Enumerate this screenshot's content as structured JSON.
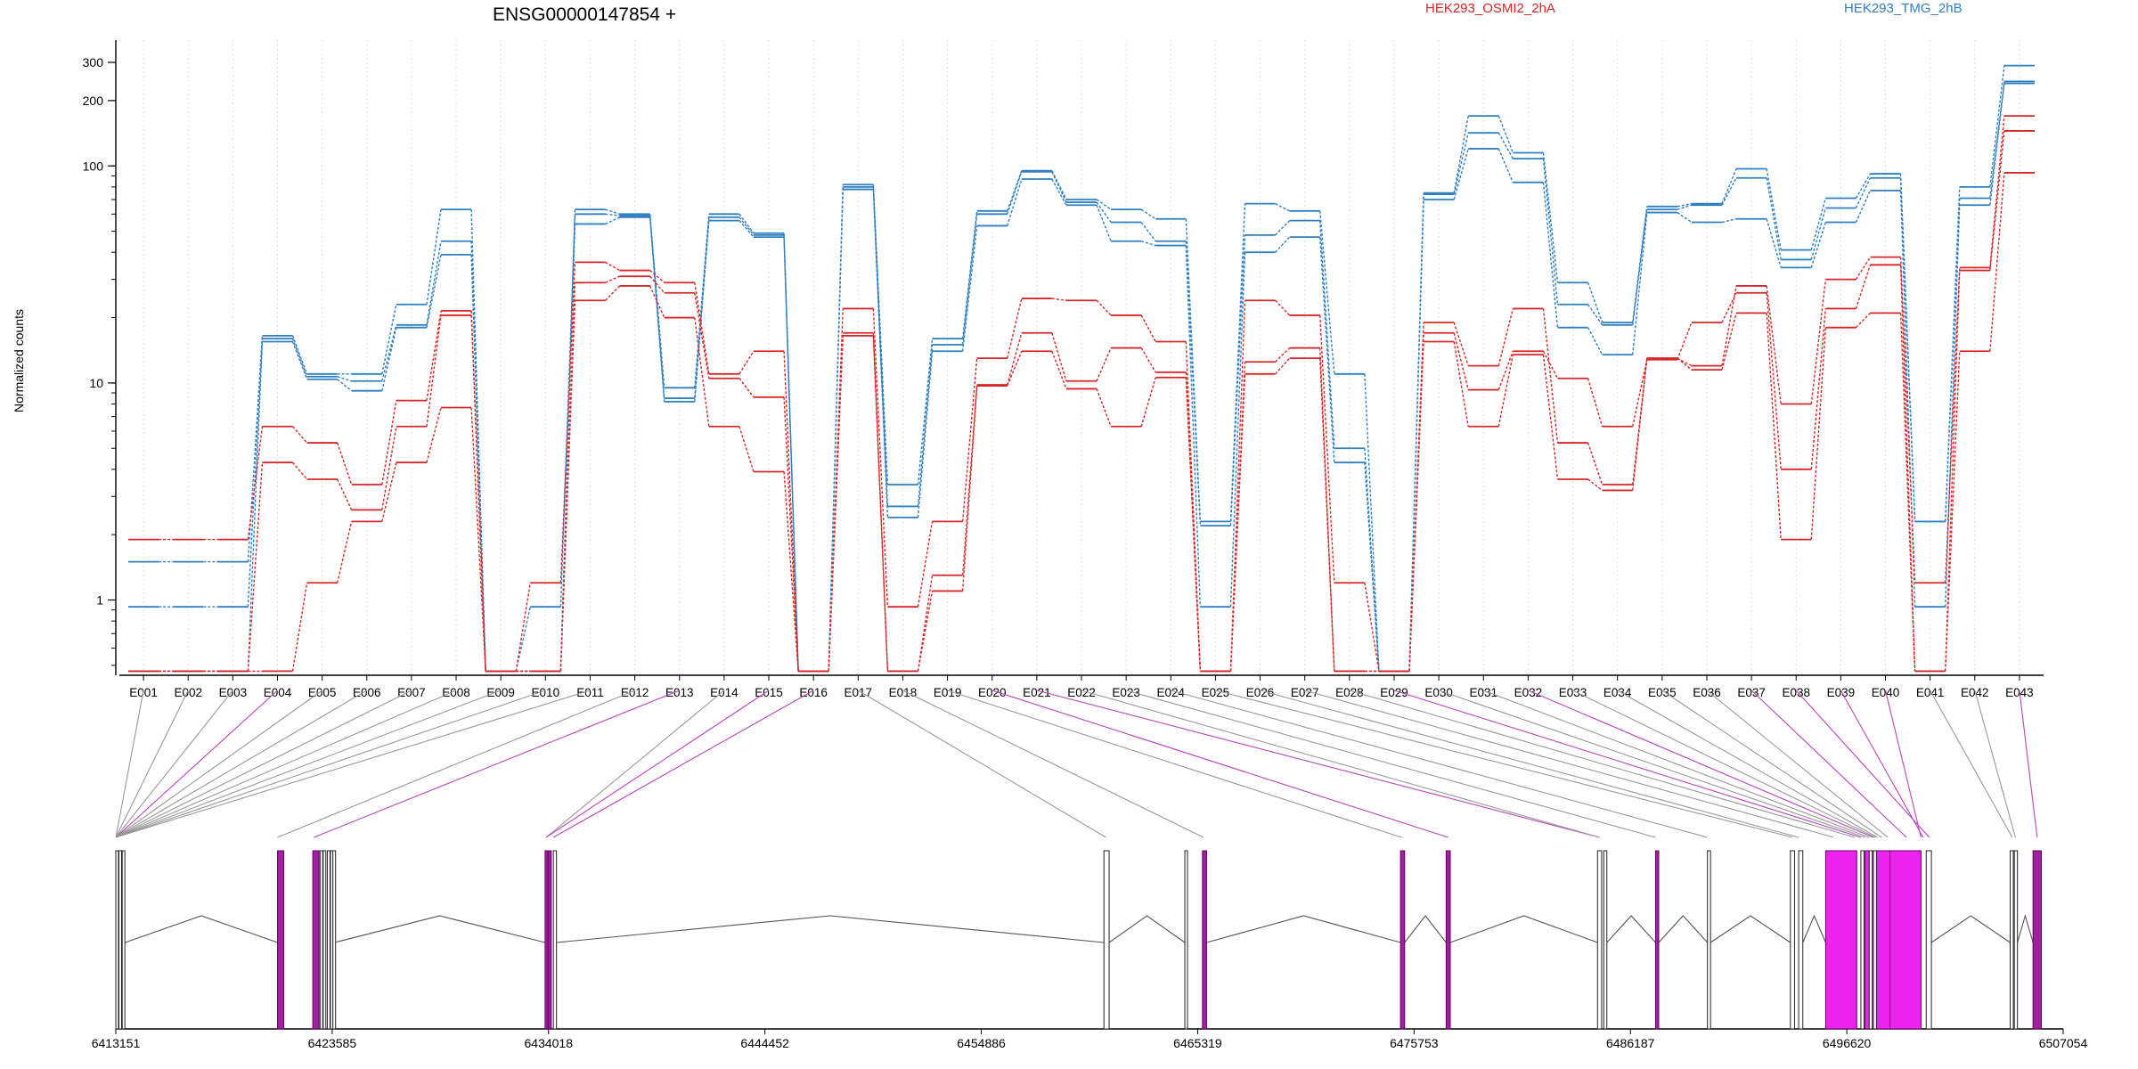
{
  "title": "ENSG00000147854 +",
  "legend": [
    {
      "label": "HEK293_OSMI2_2hA",
      "color": "#d62728"
    },
    {
      "label": "HEK293_TMG_2hB",
      "color": "#2f7fc1"
    }
  ],
  "colors": {
    "exon_highlight": "#ee22ee",
    "connector_highlight": "#bb44bb",
    "connector_plain": "#999999"
  },
  "chart_data": {
    "type": "line",
    "ylabel": "Normalized counts",
    "yscale": "log",
    "ylim": [
      0.45,
      380
    ],
    "yticks": [
      1,
      10,
      100,
      200,
      300
    ],
    "categories": [
      "E001",
      "E002",
      "E003",
      "E004",
      "E005",
      "E006",
      "E007",
      "E008",
      "E009",
      "E010",
      "E011",
      "E012",
      "E013",
      "E014",
      "E015",
      "E016",
      "E017",
      "E018",
      "E019",
      "E020",
      "E021",
      "E022",
      "E023",
      "E024",
      "E025",
      "E026",
      "E027",
      "E028",
      "E029",
      "E030",
      "E031",
      "E032",
      "E033",
      "E034",
      "E035",
      "E036",
      "E037",
      "E038",
      "E039",
      "E040",
      "E041",
      "E042",
      "E043"
    ],
    "series": [
      {
        "group": "HEK293_TMG_2hB",
        "values": [
          1.5,
          1.5,
          1.5,
          16.5,
          11,
          11,
          23,
          63,
          0.47,
          0.47,
          63,
          60,
          9.5,
          60,
          49,
          0.47,
          82,
          3.4,
          16,
          62,
          95,
          70,
          63,
          57,
          2.3,
          67,
          62,
          11,
          0.47,
          75,
          170,
          115,
          29,
          19,
          65,
          67,
          97,
          41,
          71,
          92,
          2.3,
          80,
          290
        ]
      },
      {
        "group": "HEK293_TMG_2hB",
        "values": [
          0.93,
          0.93,
          0.93,
          16,
          10.7,
          10.2,
          18.5,
          45,
          0.47,
          0.93,
          60,
          59,
          8.5,
          58,
          48,
          0.47,
          80,
          2.7,
          15,
          60,
          94,
          68,
          55,
          45,
          2.2,
          48,
          56,
          5,
          0.47,
          74,
          142,
          108,
          23,
          18.5,
          63,
          66,
          88,
          37,
          64,
          88,
          2.3,
          71,
          245
        ]
      },
      {
        "group": "HEK293_TMG_2hB",
        "values": [
          0.47,
          0.47,
          0.47,
          15.5,
          10.4,
          9.2,
          18,
          39,
          0.47,
          0.47,
          54,
          58,
          8.2,
          56,
          47,
          0.47,
          78,
          2.4,
          14,
          53,
          87,
          66,
          45,
          43,
          0.93,
          40,
          47,
          4.3,
          0.47,
          70,
          120,
          84,
          18,
          13.5,
          61,
          55,
          57,
          34,
          55,
          77,
          0.93,
          66,
          240
        ]
      },
      {
        "group": "HEK293_OSMI2_2hA",
        "values": [
          1.9,
          1.9,
          1.9,
          6.3,
          5.3,
          3.4,
          8.3,
          21.5,
          0.47,
          1.2,
          36,
          33,
          29,
          11,
          14,
          0.47,
          22,
          0.93,
          2.3,
          13,
          24.5,
          24,
          20.5,
          15.5,
          0.47,
          24,
          20.5,
          1.2,
          0.47,
          19,
          12,
          22,
          5.3,
          3.4,
          13,
          12,
          28,
          8,
          30,
          38,
          1.2,
          34,
          170
        ]
      },
      {
        "group": "HEK293_OSMI2_2hA",
        "values": [
          0.47,
          0.47,
          0.47,
          4.3,
          3.6,
          2.6,
          6.3,
          20.5,
          0.47,
          0.47,
          29,
          31,
          26,
          10.5,
          8.6,
          0.47,
          17,
          0.47,
          1.3,
          9.8,
          17,
          10.2,
          14.5,
          11.2,
          0.47,
          12.5,
          14.5,
          0.47,
          0.47,
          17,
          9.3,
          14,
          10.5,
          6.3,
          12.8,
          19,
          26,
          4,
          22,
          35,
          0.47,
          33,
          145
        ]
      },
      {
        "group": "HEK293_OSMI2_2hA",
        "values": [
          0.47,
          0.47,
          0.47,
          0.47,
          1.2,
          2.3,
          4.3,
          7.7,
          0.47,
          0.47,
          24,
          28,
          20,
          6.3,
          3.9,
          0.47,
          16.5,
          0.47,
          1.1,
          9.7,
          14,
          9.4,
          6.3,
          10.6,
          0.47,
          11,
          13,
          0.47,
          0.47,
          15.5,
          6.3,
          13.5,
          3.6,
          3.2,
          13,
          11.5,
          21,
          1.9,
          18,
          21,
          0.47,
          14,
          93
        ]
      }
    ],
    "gene_model": {
      "start_label": "6413151",
      "end_label": "6507054",
      "start": 6413151,
      "end": 6507054,
      "coord_ticks": [
        "6413151",
        "6423585",
        "6434018",
        "6444452",
        "6454886",
        "6465319",
        "6475753",
        "6486187",
        "6496620",
        "6507054"
      ],
      "highlighted_exons": [
        3,
        12,
        14,
        15,
        19,
        20,
        28,
        31,
        36,
        37,
        38,
        39,
        42
      ]
    }
  }
}
